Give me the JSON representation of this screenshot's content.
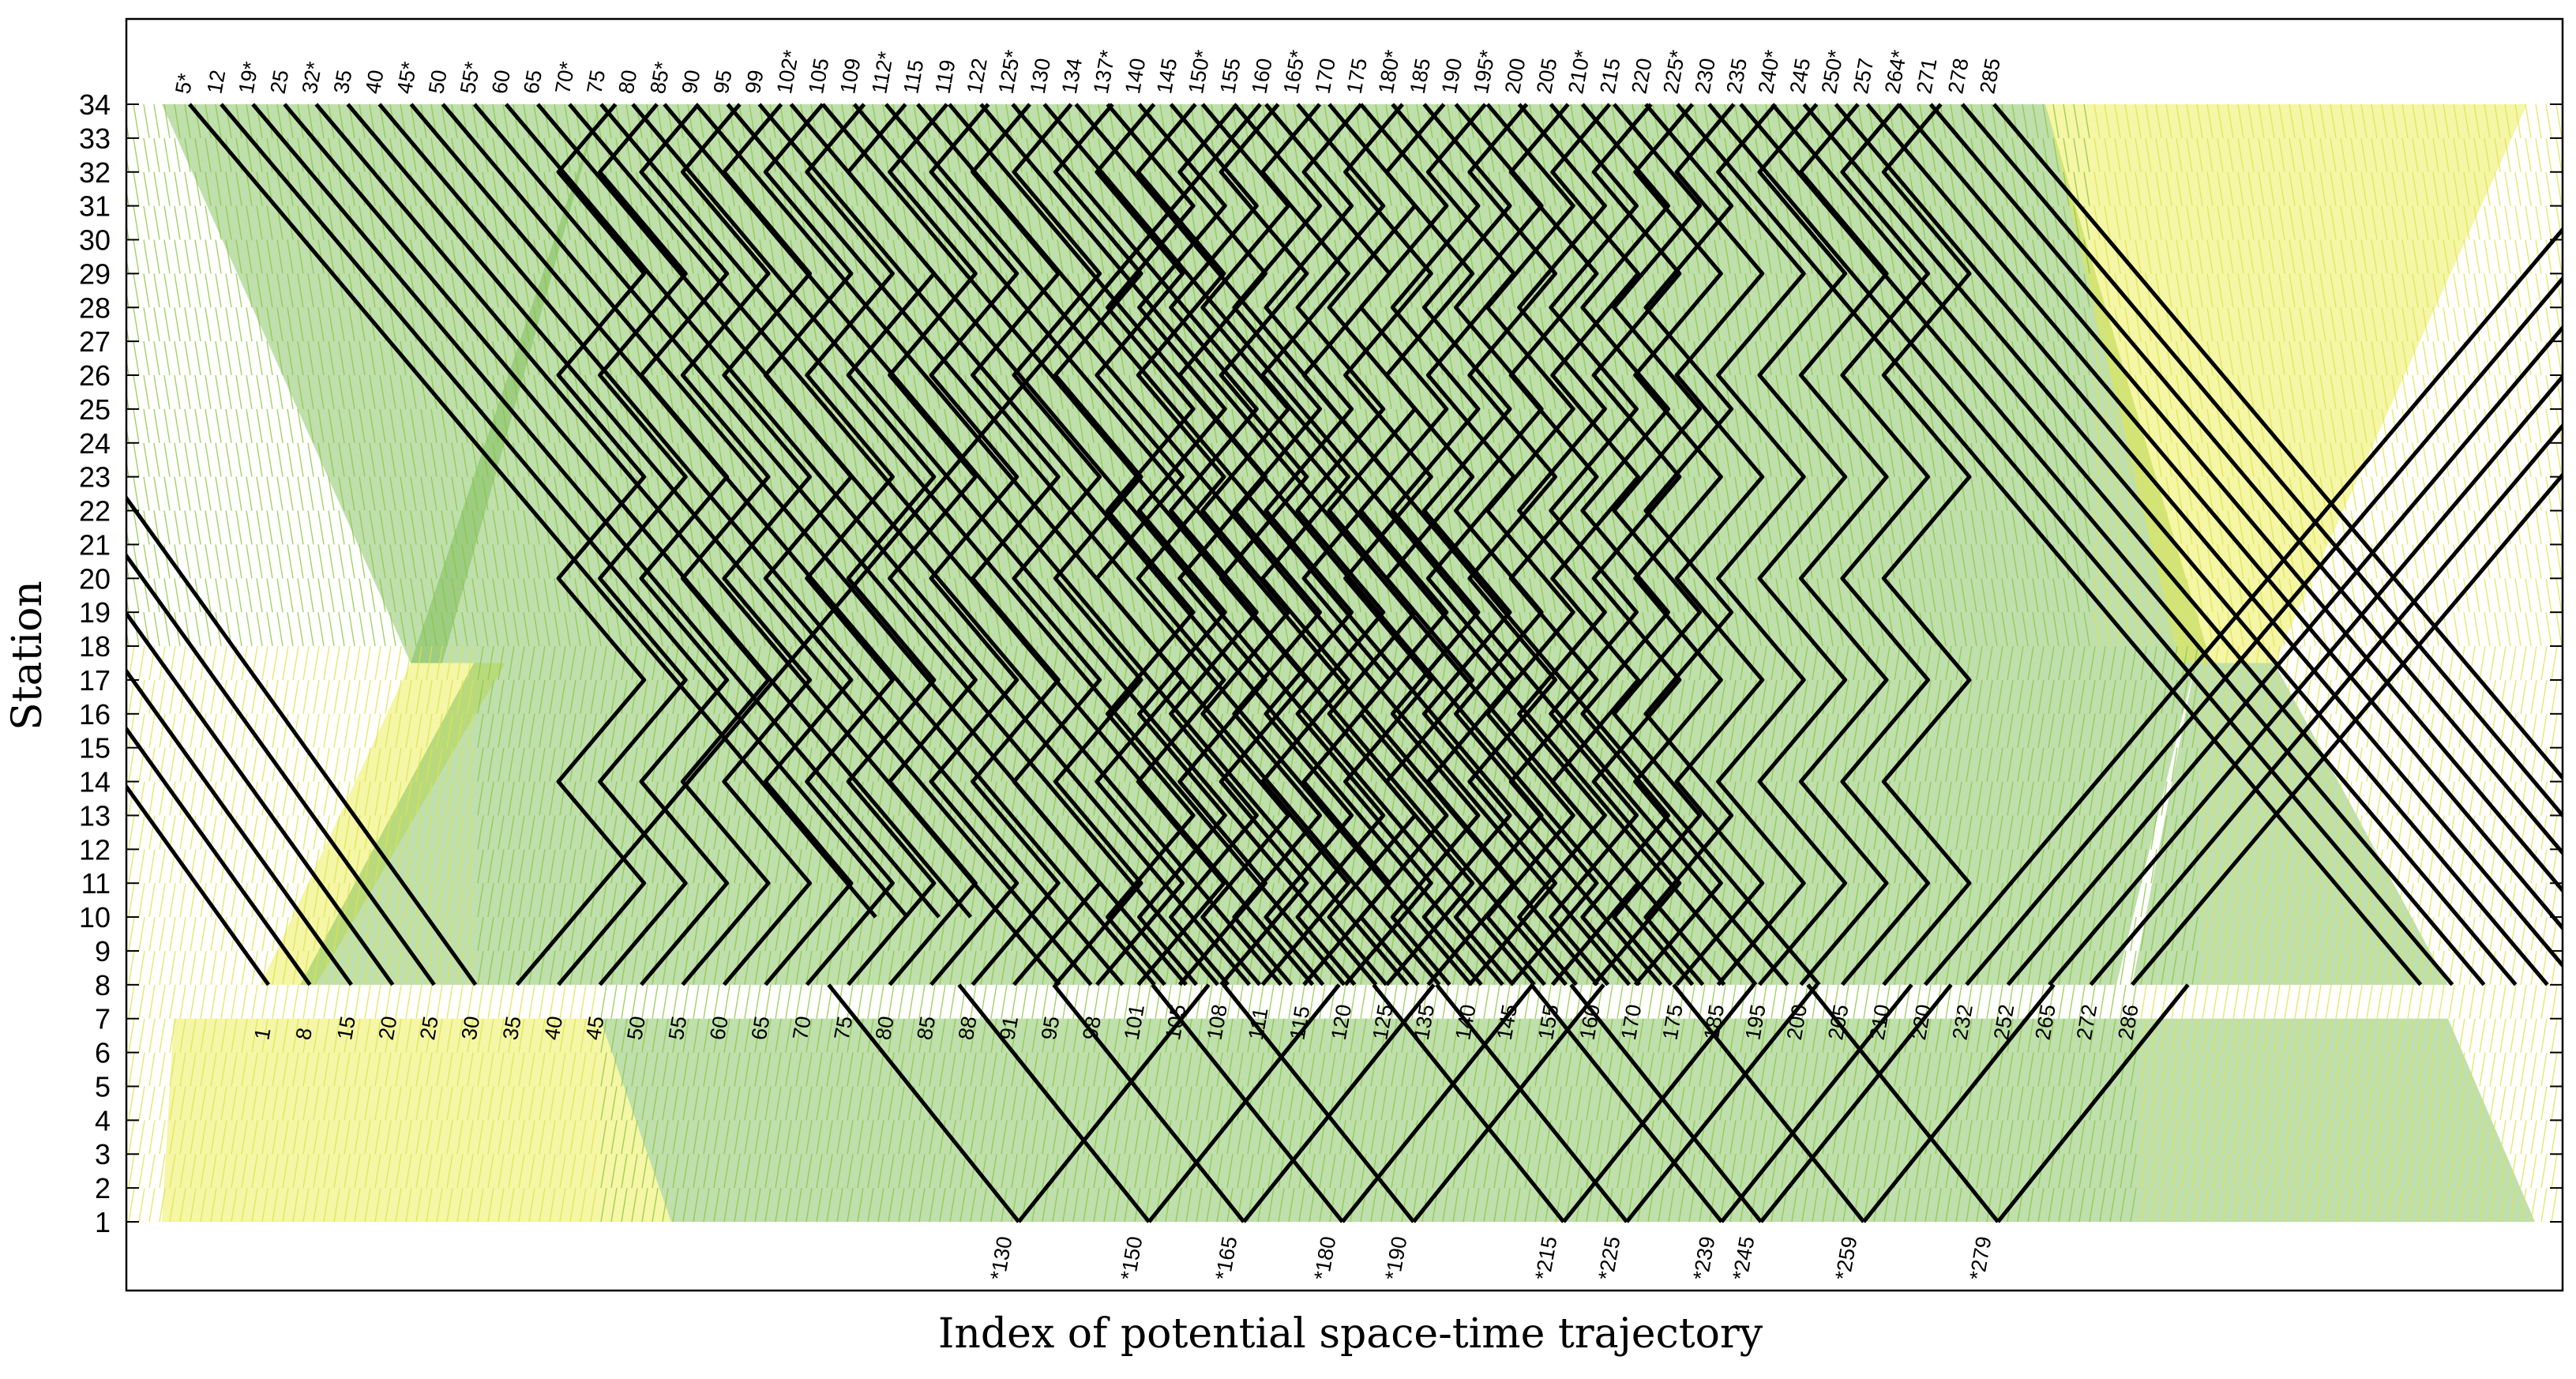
{
  "chart_data": {
    "type": "line",
    "title": "",
    "xlabel": "Index of potential space-time trajectory",
    "ylabel": "Station",
    "ylim": [
      1,
      34
    ],
    "yticks": [
      "1",
      "2",
      "3",
      "4",
      "5",
      "6",
      "7",
      "8",
      "9",
      "10",
      "11",
      "12",
      "13",
      "14",
      "15",
      "16",
      "17",
      "18",
      "19",
      "20",
      "21",
      "22",
      "23",
      "24",
      "25",
      "26",
      "27",
      "28",
      "29",
      "30",
      "31",
      "32",
      "33",
      "34"
    ],
    "grid": false,
    "legend": "none",
    "colors": {
      "background_yellow": "#e8ea3a",
      "background_green": "#72b84a",
      "selected_trajectory": "#000000",
      "frame": "#000000"
    },
    "top_labels": [
      "5*",
      "12",
      "19*",
      "25",
      "32*",
      "35",
      "40",
      "45*",
      "50",
      "55*",
      "60",
      "65",
      "70*",
      "75",
      "80",
      "85*",
      "90",
      "95",
      "99",
      "102*",
      "105",
      "109",
      "112*",
      "115",
      "119",
      "122",
      "125*",
      "130",
      "134",
      "137*",
      "140",
      "145",
      "150*",
      "155",
      "160",
      "165*",
      "170",
      "175",
      "180*",
      "185",
      "190",
      "195*",
      "200",
      "205",
      "210*",
      "215",
      "220",
      "225*",
      "230",
      "235",
      "240*",
      "245",
      "250*",
      "257",
      "264*",
      "271",
      "278",
      "285"
    ],
    "middle_labels": [
      "1",
      "8",
      "15",
      "20",
      "25",
      "30",
      "35",
      "40",
      "45",
      "50",
      "55",
      "60",
      "65",
      "70",
      "75",
      "80",
      "85",
      "88",
      "91",
      "95",
      "98",
      "101",
      "105",
      "108",
      "111",
      "115",
      "120",
      "125",
      "135",
      "140",
      "145",
      "155",
      "160",
      "170",
      "175",
      "185",
      "195",
      "200",
      "205",
      "210",
      "220",
      "232",
      "252",
      "265",
      "272",
      "286"
    ],
    "bottom_labels": [
      "*130",
      "*150",
      "*165",
      "*180",
      "*190",
      "*215",
      "*225",
      "*239",
      "*245",
      "*259",
      "*279"
    ],
    "selected_series": [
      {
        "group": "down_from_34",
        "start_trajectories": [
          "5*",
          "12",
          "19*",
          "25",
          "32*",
          "35",
          "40",
          "45*",
          "50",
          "55*",
          "60",
          "65",
          "70*",
          "75",
          "80",
          "85*",
          "90",
          "95",
          "99",
          "102*",
          "105",
          "109",
          "112*",
          "115",
          "119",
          "122",
          "125*",
          "130",
          "134",
          "137*",
          "140",
          "145",
          "150*",
          "155",
          "160",
          "165*",
          "170",
          "175",
          "180*",
          "185",
          "190",
          "195*",
          "200",
          "205",
          "210*",
          "215",
          "220",
          "225*",
          "230",
          "235",
          "240*",
          "245",
          "250*",
          "257",
          "264*",
          "271",
          "278",
          "285"
        ]
      },
      {
        "group": "up_from_8",
        "start_trajectories": [
          "1",
          "8",
          "15",
          "20",
          "25",
          "30",
          "35",
          "40",
          "45",
          "50",
          "55",
          "60",
          "65",
          "70",
          "75",
          "80",
          "85",
          "88",
          "91",
          "95",
          "98",
          "101",
          "105",
          "108",
          "111",
          "115",
          "120",
          "125",
          "135",
          "140",
          "145",
          "155",
          "160",
          "170",
          "175",
          "185",
          "195",
          "200",
          "205",
          "210",
          "220",
          "232",
          "252",
          "265",
          "272",
          "286"
        ]
      },
      {
        "group": "up_from_1",
        "start_trajectories": [
          "*130",
          "*150",
          "*165",
          "*180",
          "*190",
          "*215",
          "*225",
          "*239",
          "*245",
          "*259",
          "*279"
        ]
      }
    ]
  }
}
